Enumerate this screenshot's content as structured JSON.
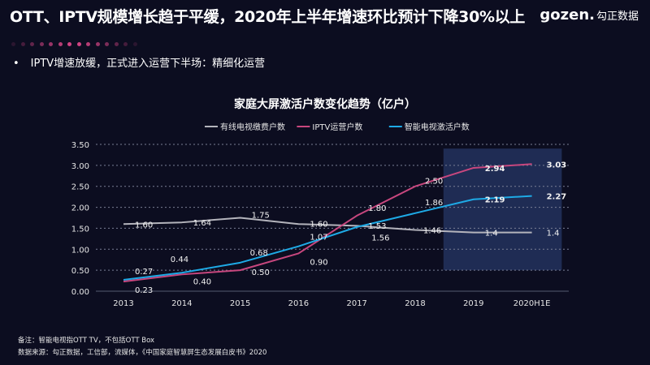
{
  "header": {
    "title": "OTT、IPTV规模增长趋于平缓，2020年上半年增速环比预计下降30%以上",
    "logo_text": "gozen.",
    "logo_cn": "勾正数据"
  },
  "bullet": "IPTV增速放缓，正式进入运营下半场：精细化运营",
  "chart_data": {
    "type": "line",
    "title": "家庭大屏激活户数变化趋势（亿户）",
    "categories": [
      "2013",
      "2014",
      "2015",
      "2016",
      "2017",
      "2018",
      "2019",
      "2020H1E"
    ],
    "ylim": [
      0,
      3.5
    ],
    "yticks": [
      "0.00",
      "0.50",
      "1.00",
      "1.50",
      "2.00",
      "2.50",
      "3.00",
      "3.50"
    ],
    "grid": true,
    "legend_position": "top",
    "highlight_categories": [
      "2019",
      "2020H1E"
    ],
    "series": [
      {
        "name": "有线电视缴费户数",
        "color": "#b4b4bc",
        "values": [
          1.6,
          1.64,
          1.75,
          1.6,
          1.56,
          1.46,
          1.4,
          1.4
        ],
        "labels": [
          "1.60",
          "1.64",
          "1.75",
          "1.60",
          "1.56",
          "1.46",
          "1.4",
          "1.4"
        ]
      },
      {
        "name": "IPTV运营户数",
        "color": "#c8477e",
        "values": [
          0.23,
          0.4,
          0.5,
          0.9,
          1.8,
          2.5,
          2.94,
          3.03
        ],
        "labels": [
          "0.23",
          "0.40",
          "0.50",
          "0.90",
          "1.80",
          "2.50",
          "2.94",
          "3.03"
        ]
      },
      {
        "name": "智能电视激活户数",
        "color": "#1eaae6",
        "values": [
          0.27,
          0.44,
          0.68,
          1.07,
          1.53,
          1.86,
          2.19,
          2.27
        ],
        "labels": [
          "0.27",
          "0.44",
          "0.68",
          "1.07",
          "1.53",
          "1.86",
          "2.19",
          "2.27"
        ]
      }
    ]
  },
  "notes": {
    "note": "备注：智能电视指OTT TV，不包括OTT Box",
    "source": "数据来源：勾正数据，工信部，流媒体，《中国家庭智慧屏生态发展白皮书》2020"
  }
}
